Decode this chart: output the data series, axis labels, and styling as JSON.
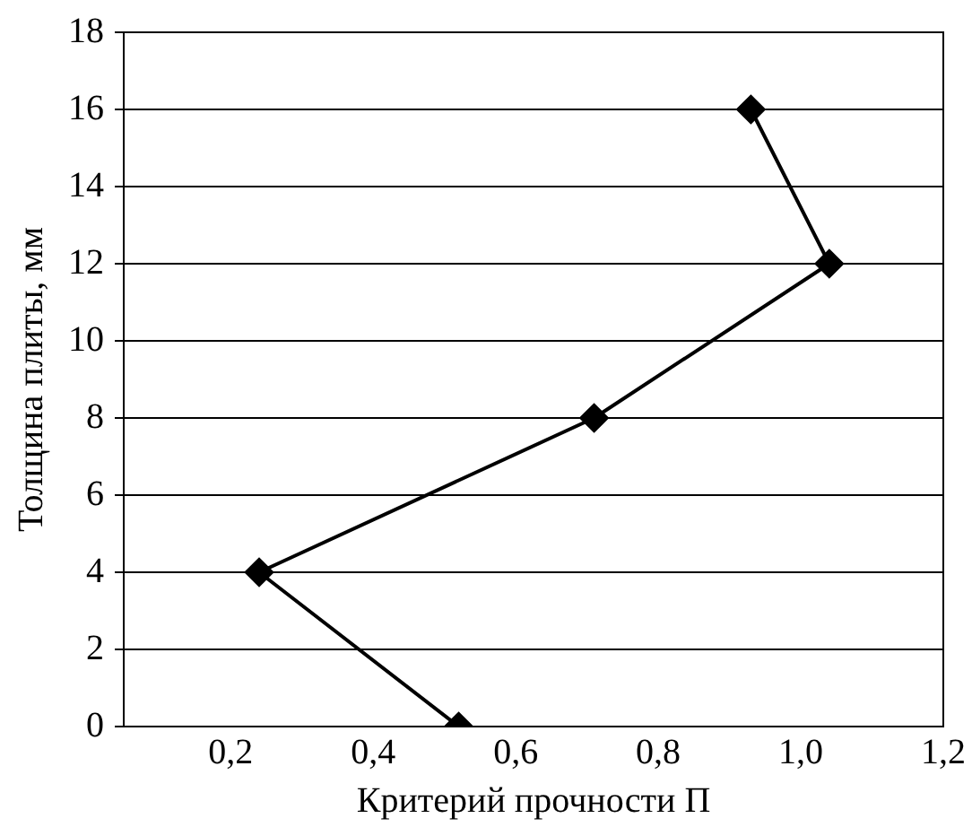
{
  "chart_data": {
    "type": "line",
    "xlabel": "Критерий прочности П",
    "ylabel": "Толщина плиты, мм",
    "series": [
      {
        "color": "#000000",
        "x": [
          0.52,
          0.24,
          0.71,
          1.04,
          0.93
        ],
        "values": [
          0,
          4,
          8,
          12,
          16
        ]
      }
    ],
    "xlim": [
      0.05,
      1.2
    ],
    "xticks": [
      {
        "value": 0.2,
        "label": "0,2"
      },
      {
        "value": 0.4,
        "label": "0,4"
      },
      {
        "value": 0.6,
        "label": "0,6"
      },
      {
        "value": 0.8,
        "label": "0,8"
      },
      {
        "value": 1.0,
        "label": "1,0"
      },
      {
        "value": 1.2,
        "label": "1,2"
      }
    ],
    "ylim": [
      0,
      18
    ],
    "yticks": [
      0,
      2,
      4,
      6,
      8,
      10,
      12,
      14,
      16,
      18
    ],
    "grid": "y",
    "legend": false,
    "marker": "diamond",
    "line_style": "solid"
  }
}
